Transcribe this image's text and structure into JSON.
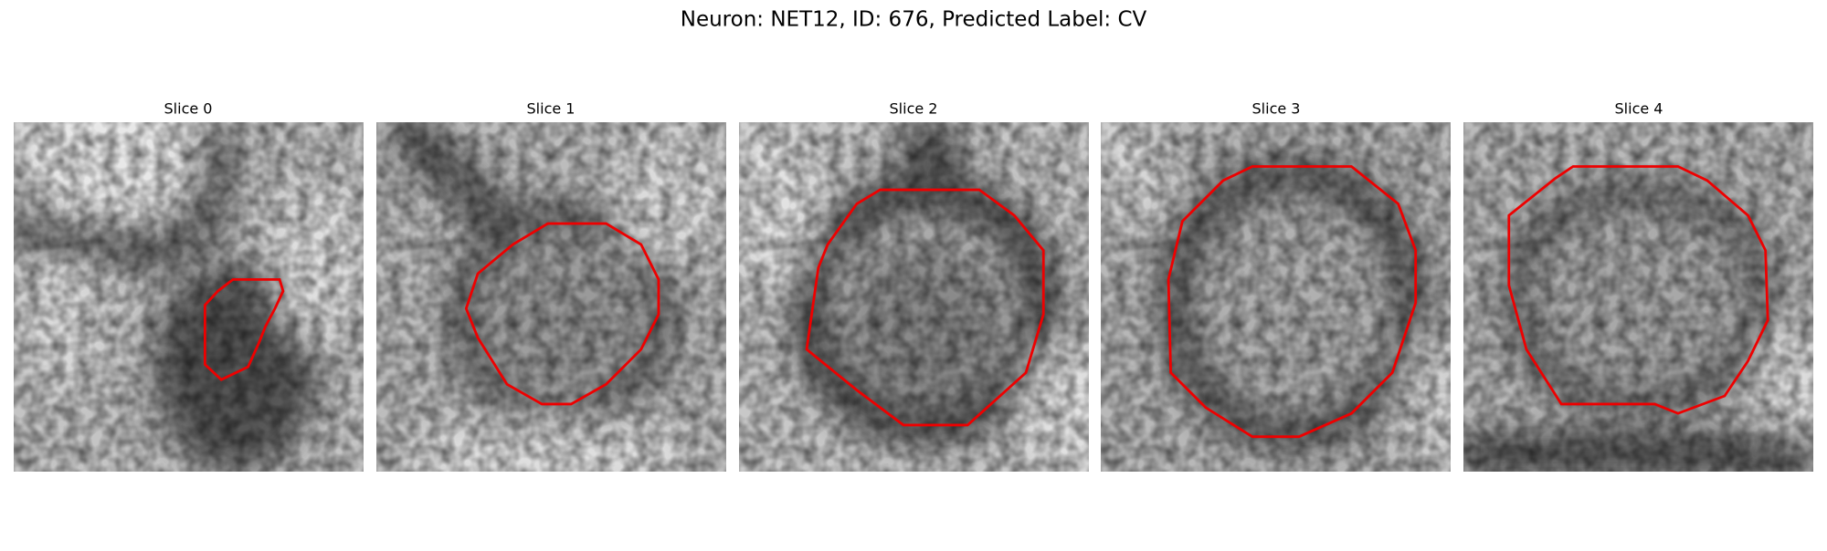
{
  "title": "Neuron: NET12, ID: 676, Predicted Label: CV",
  "panels": [
    {
      "title": "Slice 0"
    },
    {
      "title": "Slice 1"
    },
    {
      "title": "Slice 2"
    },
    {
      "title": "Slice 3"
    },
    {
      "title": "Slice 4"
    }
  ]
}
